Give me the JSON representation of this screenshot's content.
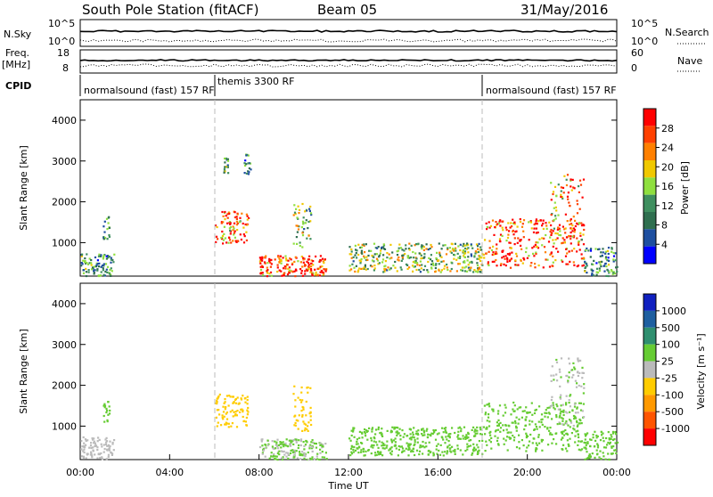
{
  "header": {
    "station": "South Pole Station (fitACF)",
    "beam": "Beam 05",
    "date": "31/May/2016"
  },
  "side_labels": {
    "nsky": "N.Sky",
    "nsearch": "N.Search",
    "freq_line1": "Freq.",
    "freq_line2": "[MHz]",
    "nave": "Nave",
    "cpid": "CPID"
  },
  "small_axes": {
    "nsky_ticks": [
      "10^5",
      "10^0"
    ],
    "nsearch_ticks": [
      "10^5",
      "10^0"
    ],
    "freq_ticks": [
      "18",
      "8"
    ],
    "nave_ticks": [
      "60",
      "0"
    ]
  },
  "cpid_segments": [
    {
      "label": "normalsound (fast) 157 RF",
      "start_hour": 0
    },
    {
      "label": "themis 3300 RF",
      "start_hour": 6
    },
    {
      "label": "normalsound (fast) 157 RF",
      "start_hour": 18
    }
  ],
  "colors": {
    "power": [
      "#0000ff",
      "#1e4fa0",
      "#2f6f4f",
      "#3f8f5f",
      "#8fdf3f",
      "#f0c800",
      "#ff8000",
      "#ff4000",
      "#ff0000"
    ],
    "velocity": [
      "#ff0000",
      "#ff5500",
      "#ff9900",
      "#ffcc00",
      "#bbbbbb",
      "#66cc33",
      "#2f8f6f",
      "#1e5fa0",
      "#1020c0"
    ]
  },
  "chart_data": [
    {
      "type": "heatmap",
      "title": "Power",
      "xlabel": "Time UT",
      "ylabel": "Slant Range [km]",
      "xlim_hours": [
        0,
        24
      ],
      "ylim": [
        180,
        4500
      ],
      "x_ticks": [
        "00:00",
        "04:00",
        "08:00",
        "12:00",
        "16:00",
        "20:00",
        "00:00"
      ],
      "y_ticks": [
        "1000",
        "2000",
        "3000",
        "4000"
      ],
      "colorbar": {
        "label": "Power [dB]",
        "ticks": [
          "28",
          "24",
          "20",
          "16",
          "12",
          "8",
          "4"
        ],
        "range": [
          0,
          30
        ]
      },
      "scatter_regions": [
        {
          "t0": 0.0,
          "t1": 1.5,
          "r0": 200,
          "r1": 750,
          "level": 10
        },
        {
          "t0": 1.0,
          "t1": 1.3,
          "r0": 1100,
          "r1": 1700,
          "level": 12
        },
        {
          "t0": 6.0,
          "t1": 7.5,
          "r0": 1000,
          "r1": 1800,
          "level": 24
        },
        {
          "t0": 6.3,
          "t1": 6.6,
          "r0": 2700,
          "r1": 3100,
          "level": 12
        },
        {
          "t0": 7.3,
          "t1": 7.6,
          "r0": 2700,
          "r1": 3200,
          "level": 10
        },
        {
          "t0": 8.0,
          "t1": 11.0,
          "r0": 200,
          "r1": 700,
          "level": 26
        },
        {
          "t0": 9.5,
          "t1": 10.3,
          "r0": 900,
          "r1": 2000,
          "level": 14
        },
        {
          "t0": 12.0,
          "t1": 18.0,
          "r0": 300,
          "r1": 1000,
          "level": 14
        },
        {
          "t0": 18.0,
          "t1": 22.5,
          "r0": 400,
          "r1": 1600,
          "level": 26
        },
        {
          "t0": 21.0,
          "t1": 22.5,
          "r0": 1000,
          "r1": 2700,
          "level": 22
        },
        {
          "t0": 22.5,
          "t1": 24.0,
          "r0": 200,
          "r1": 900,
          "level": 10
        }
      ]
    },
    {
      "type": "heatmap",
      "title": "Velocity",
      "xlabel": "Time UT",
      "ylabel": "Slant Range [km]",
      "xlim_hours": [
        0,
        24
      ],
      "ylim": [
        180,
        4500
      ],
      "x_ticks": [
        "00:00",
        "04:00",
        "08:00",
        "12:00",
        "16:00",
        "20:00",
        "00:00"
      ],
      "y_ticks": [
        "1000",
        "2000",
        "3000",
        "4000"
      ],
      "colorbar": {
        "label": "Velocity [m s⁻¹]",
        "ticks": [
          "1000",
          "500",
          "100",
          "25",
          "-25",
          "-100",
          "-500",
          "-1000"
        ],
        "range": [
          -1200,
          1200
        ]
      },
      "scatter_regions": [
        {
          "t0": 0.0,
          "t1": 1.5,
          "r0": 200,
          "r1": 750,
          "level": 80
        },
        {
          "t0": 1.0,
          "t1": 1.3,
          "r0": 1100,
          "r1": 1700,
          "level": 300
        },
        {
          "t0": 6.0,
          "t1": 7.5,
          "r0": 1000,
          "r1": 1800,
          "level": -300
        },
        {
          "t0": 8.0,
          "t1": 11.0,
          "r0": 200,
          "r1": 700,
          "level": 150
        },
        {
          "t0": 9.5,
          "t1": 10.3,
          "r0": 900,
          "r1": 2000,
          "level": -200
        },
        {
          "t0": 12.0,
          "t1": 18.0,
          "r0": 300,
          "r1": 1000,
          "level": 200
        },
        {
          "t0": 18.0,
          "t1": 22.5,
          "r0": 400,
          "r1": 1600,
          "level": 250
        },
        {
          "t0": 21.0,
          "t1": 22.5,
          "r0": 1000,
          "r1": 2700,
          "level": 120
        },
        {
          "t0": 22.5,
          "t1": 24.0,
          "r0": 200,
          "r1": 900,
          "level": 300
        }
      ]
    }
  ]
}
